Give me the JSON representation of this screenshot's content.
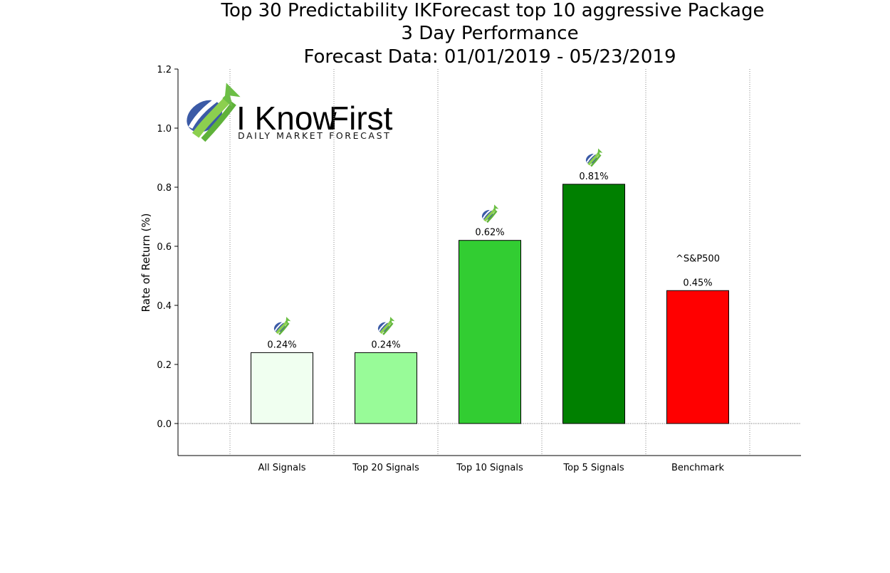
{
  "chart_data": {
    "type": "bar",
    "title_lines": [
      "Top 30 Predictability IKForecast top 10 aggressive Package",
      "3 Day Performance",
      "Forecast Data: 01/01/2019 - 05/23/2019"
    ],
    "xlabel": "",
    "ylabel": "Rate of Return (%)",
    "ylim": [
      -0.11,
      1.2
    ],
    "yticks": [
      0.0,
      0.2,
      0.4,
      0.6,
      0.8,
      1.0,
      1.2
    ],
    "ytick_labels": [
      "0.0",
      "0.2",
      "0.4",
      "0.6",
      "0.8",
      "1.0",
      "1.2"
    ],
    "categories": [
      "All Signals",
      "Top 20 Signals",
      "Top 10 Signals",
      "Top 5 Signals",
      "Benchmark"
    ],
    "values": [
      0.24,
      0.24,
      0.62,
      0.81,
      0.45
    ],
    "data_labels": [
      "0.24%",
      "0.24%",
      "0.62%",
      "0.81%",
      "0.45%"
    ],
    "bar_colors": [
      "#f0fff0",
      "#98fb98",
      "#32cd32",
      "#008000",
      "#ff0000"
    ],
    "bar_markers": [
      "logo-icon",
      "logo-icon",
      "logo-icon",
      "logo-icon",
      "text"
    ],
    "benchmark_annotation": "^S&P500",
    "grid": {
      "vertical": "dotted",
      "horizontal_zero_line": "dotted"
    }
  },
  "logo": {
    "brand_word_1": "I Know",
    "brand_word_2": "First",
    "tagline": "DAILY MARKET FORECAST",
    "brand_color_blue": "#3b5aa6",
    "brand_color_green": "#6cbf45"
  }
}
